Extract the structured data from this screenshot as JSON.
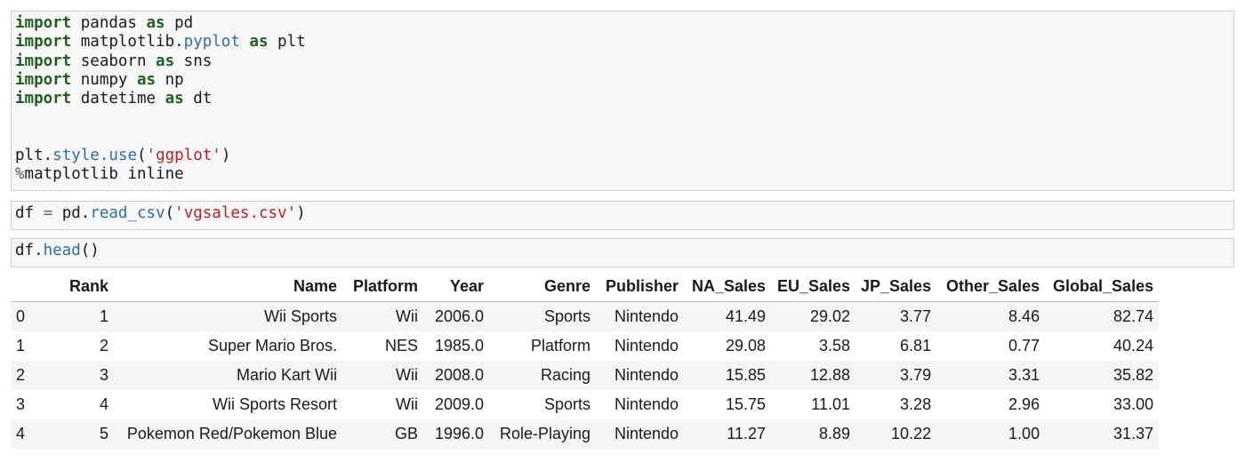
{
  "cells": [
    {
      "code": {
        "line1": {
          "kw1": "import",
          "mod": " pandas ",
          "kw2": "as",
          "alias": " pd"
        },
        "line2": {
          "kw1": "import",
          "mod1": " matplotlib.",
          "mod2": "pyplot",
          "mod3": " ",
          "kw2": "as",
          "alias": " plt"
        },
        "line3": {
          "kw1": "import",
          "mod": " seaborn ",
          "kw2": "as",
          "alias": " sns"
        },
        "line4": {
          "kw1": "import",
          "mod": " numpy ",
          "kw2": "as",
          "alias": " np"
        },
        "line5": {
          "kw1": "import",
          "mod": " datetime ",
          "kw2": "as",
          "alias": " dt"
        },
        "line6": {
          "obj": "plt.",
          "attr": "style.use",
          "p1": "(",
          "str": "'ggplot'",
          "p2": ")"
        },
        "line7": {
          "op": "%",
          "text": "matplotlib inline"
        }
      }
    },
    {
      "code": {
        "a": "df ",
        "op": "=",
        "b": " pd.",
        "attr": "read_csv",
        "p1": "(",
        "str": "'vgsales.csv'",
        "p2": ")"
      }
    },
    {
      "code": {
        "a": "df.",
        "attr": "head",
        "p": "()"
      }
    }
  ],
  "dataframe": {
    "columns": [
      "Rank",
      "Name",
      "Platform",
      "Year",
      "Genre",
      "Publisher",
      "NA_Sales",
      "EU_Sales",
      "JP_Sales",
      "Other_Sales",
      "Global_Sales"
    ],
    "rows": [
      {
        "index": "0",
        "values": [
          "1",
          "Wii Sports",
          "Wii",
          "2006.0",
          "Sports",
          "Nintendo",
          "41.49",
          "29.02",
          "3.77",
          "8.46",
          "82.74"
        ]
      },
      {
        "index": "1",
        "values": [
          "2",
          "Super Mario Bros.",
          "NES",
          "1985.0",
          "Platform",
          "Nintendo",
          "29.08",
          "3.58",
          "6.81",
          "0.77",
          "40.24"
        ]
      },
      {
        "index": "2",
        "values": [
          "3",
          "Mario Kart Wii",
          "Wii",
          "2008.0",
          "Racing",
          "Nintendo",
          "15.85",
          "12.88",
          "3.79",
          "3.31",
          "35.82"
        ]
      },
      {
        "index": "3",
        "values": [
          "4",
          "Wii Sports Resort",
          "Wii",
          "2009.0",
          "Sports",
          "Nintendo",
          "15.75",
          "11.01",
          "3.28",
          "2.96",
          "33.00"
        ]
      },
      {
        "index": "4",
        "values": [
          "5",
          "Pokemon Red/Pokemon Blue",
          "GB",
          "1996.0",
          "Role-Playing",
          "Nintendo",
          "11.27",
          "8.89",
          "10.22",
          "1.00",
          "31.37"
        ]
      }
    ]
  },
  "colors": {
    "keyword": "#1f5f1f",
    "attribute": "#2e6ea8",
    "string": "#ba2121",
    "cell_background": "#f7f7f7",
    "cell_border": "#cfcfcf",
    "row_stripe": "#f5f5f5"
  }
}
